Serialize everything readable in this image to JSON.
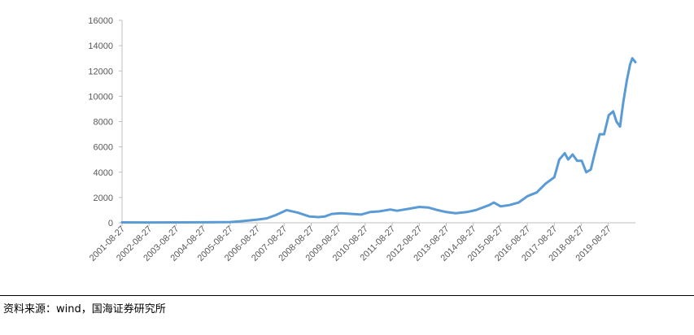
{
  "source_note": "资料来源：wind，国海证券研究所",
  "chart_data": {
    "type": "line",
    "title": "",
    "xlabel": "",
    "ylabel": "",
    "ylim": [
      0,
      16000
    ],
    "yticks": [
      0,
      2000,
      4000,
      6000,
      8000,
      10000,
      12000,
      14000,
      16000
    ],
    "xlim": [
      "2001-08-27",
      "2020-08-27"
    ],
    "xticks": [
      "2001-08-27",
      "2002-08-27",
      "2003-08-27",
      "2004-08-27",
      "2005-08-27",
      "2006-08-27",
      "2007-08-27",
      "2008-08-27",
      "2009-08-27",
      "2010-08-27",
      "2011-08-27",
      "2012-08-27",
      "2013-08-27",
      "2014-08-27",
      "2015-08-27",
      "2016-08-27",
      "2017-08-27",
      "2018-08-27",
      "2019-08-27"
    ],
    "grid": false,
    "legend": "none",
    "series_color": "#5b9bd5",
    "series": [
      {
        "points": [
          [
            "2001-08-27",
            30
          ],
          [
            "2002-08-27",
            28
          ],
          [
            "2003-08-27",
            30
          ],
          [
            "2004-08-27",
            40
          ],
          [
            "2005-08-27",
            60
          ],
          [
            "2006-01-01",
            110
          ],
          [
            "2006-08-27",
            250
          ],
          [
            "2007-01-01",
            350
          ],
          [
            "2007-05-01",
            600
          ],
          [
            "2007-10-01",
            1000
          ],
          [
            "2008-03-01",
            800
          ],
          [
            "2008-08-01",
            500
          ],
          [
            "2008-12-01",
            450
          ],
          [
            "2009-03-01",
            500
          ],
          [
            "2009-06-01",
            700
          ],
          [
            "2009-10-01",
            750
          ],
          [
            "2010-03-01",
            700
          ],
          [
            "2010-07-01",
            650
          ],
          [
            "2010-11-01",
            850
          ],
          [
            "2011-03-01",
            900
          ],
          [
            "2011-08-01",
            1050
          ],
          [
            "2011-11-01",
            950
          ],
          [
            "2012-04-01",
            1100
          ],
          [
            "2012-08-27",
            1250
          ],
          [
            "2013-01-01",
            1200
          ],
          [
            "2013-05-01",
            1000
          ],
          [
            "2013-08-27",
            850
          ],
          [
            "2014-01-01",
            750
          ],
          [
            "2014-06-01",
            850
          ],
          [
            "2014-10-01",
            1000
          ],
          [
            "2015-04-01",
            1400
          ],
          [
            "2015-06-01",
            1600
          ],
          [
            "2015-09-01",
            1300
          ],
          [
            "2016-01-01",
            1400
          ],
          [
            "2016-05-01",
            1600
          ],
          [
            "2016-08-27",
            2100
          ],
          [
            "2017-01-01",
            2400
          ],
          [
            "2017-05-01",
            3100
          ],
          [
            "2017-08-27",
            3600
          ],
          [
            "2017-11-01",
            5000
          ],
          [
            "2018-01-15",
            5500
          ],
          [
            "2018-03-01",
            5000
          ],
          [
            "2018-05-01",
            5400
          ],
          [
            "2018-07-01",
            4900
          ],
          [
            "2018-09-01",
            4900
          ],
          [
            "2018-11-01",
            4000
          ],
          [
            "2019-01-01",
            4200
          ],
          [
            "2019-03-01",
            5600
          ],
          [
            "2019-05-01",
            7000
          ],
          [
            "2019-07-01",
            7000
          ],
          [
            "2019-09-01",
            8500
          ],
          [
            "2019-11-01",
            8800
          ],
          [
            "2019-12-15",
            8000
          ],
          [
            "2020-02-01",
            7600
          ],
          [
            "2020-03-15",
            9500
          ],
          [
            "2020-05-01",
            11200
          ],
          [
            "2020-06-15",
            12500
          ],
          [
            "2020-07-15",
            13000
          ],
          [
            "2020-08-27",
            12700
          ]
        ]
      }
    ]
  }
}
